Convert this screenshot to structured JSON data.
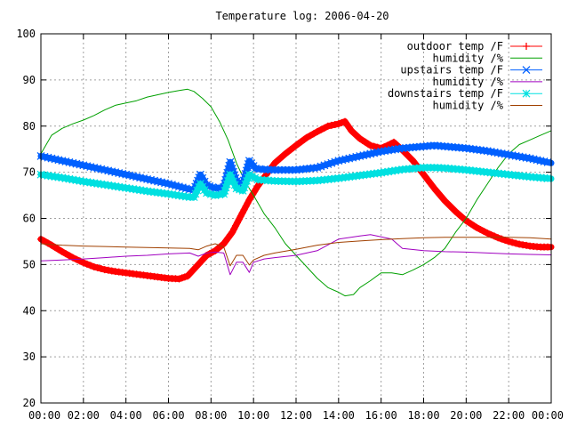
{
  "chart_data": {
    "type": "line",
    "title": "Temperature log: 2006-04-20",
    "xlabel": "",
    "ylabel": "",
    "xlim": [
      0,
      24
    ],
    "ylim": [
      20,
      100
    ],
    "x_ticks": [
      "00:00",
      "02:00",
      "04:00",
      "06:00",
      "08:00",
      "10:00",
      "12:00",
      "14:00",
      "16:00",
      "18:00",
      "20:00",
      "22:00",
      "00:00"
    ],
    "y_ticks": [
      "20",
      "30",
      "40",
      "50",
      "60",
      "70",
      "80",
      "90",
      "100"
    ],
    "grid": true,
    "legend_position": "top-right",
    "series": [
      {
        "name": "outdoor temp /F",
        "color": "#ff0000",
        "marker": "plus",
        "x": [
          0,
          0.5,
          1,
          1.5,
          2,
          2.5,
          3,
          3.5,
          4,
          4.5,
          5,
          5.5,
          6,
          6.5,
          6.9,
          7.2,
          7.5,
          7.8,
          8.2,
          8.6,
          9,
          9.4,
          9.8,
          10.2,
          10.6,
          11,
          11.5,
          12,
          12.5,
          13,
          13.5,
          14,
          14.3,
          14.6,
          15,
          15.5,
          16,
          16.3,
          16.6,
          17,
          17.5,
          18,
          18.5,
          19,
          19.5,
          20,
          20.5,
          21,
          21.5,
          22,
          22.5,
          23,
          23.5,
          24
        ],
        "y": [
          55.5,
          54.2,
          52.8,
          51.5,
          50.4,
          49.5,
          48.9,
          48.5,
          48.2,
          47.9,
          47.6,
          47.3,
          47.0,
          46.9,
          47.5,
          49,
          50.5,
          52,
          53,
          54.5,
          57,
          60.5,
          64,
          67,
          69.5,
          72,
          74,
          75.8,
          77.5,
          78.8,
          80,
          80.5,
          81,
          79,
          77.3,
          75.8,
          75.2,
          75.8,
          76.5,
          74.8,
          72.5,
          69.5,
          66.5,
          63.8,
          61.5,
          59.5,
          58,
          56.8,
          55.8,
          55,
          54.4,
          54,
          53.8,
          53.8
        ]
      },
      {
        "name": "humidity /%",
        "color": "#00a000",
        "x": [
          0,
          0.5,
          1,
          1.5,
          2,
          2.5,
          3,
          3.5,
          4,
          4.5,
          5,
          5.5,
          6,
          6.5,
          6.9,
          7.2,
          7.6,
          8,
          8.4,
          8.8,
          9.2,
          9.6,
          10,
          10.5,
          11,
          11.5,
          12,
          12.5,
          13,
          13.5,
          14,
          14.3,
          14.7,
          15,
          15.5,
          16,
          16.5,
          17,
          17.5,
          18,
          18.5,
          19,
          19.5,
          20,
          20.5,
          21,
          21.5,
          22,
          22.5,
          23,
          23.5,
          24
        ],
        "y": [
          74,
          78,
          79.5,
          80.5,
          81.3,
          82.3,
          83.5,
          84.5,
          85,
          85.5,
          86.3,
          86.8,
          87.3,
          87.7,
          88,
          87.5,
          86,
          84.2,
          81,
          77,
          72,
          68,
          65,
          61,
          58,
          54.5,
          52,
          49.5,
          47,
          45,
          44,
          43.2,
          43.5,
          45,
          46.5,
          48.2,
          48.2,
          47.8,
          48.8,
          50,
          51.5,
          53.5,
          57,
          60,
          64,
          67.5,
          71,
          74,
          76,
          77,
          78,
          79
        ]
      },
      {
        "name": "upstairs temp /F",
        "color": "#0060ff",
        "marker": "cross",
        "x": [
          0,
          1,
          2,
          3,
          4,
          5,
          6,
          7,
          7.2,
          7.5,
          7.8,
          8.2,
          8.6,
          8.9,
          9.2,
          9.5,
          9.8,
          10.1,
          10.5,
          11,
          12,
          13,
          14,
          15,
          16,
          17,
          18,
          18.5,
          19,
          20,
          21,
          22,
          23,
          24
        ],
        "y": [
          73.5,
          72.5,
          71.5,
          70.5,
          69.5,
          68.5,
          67.5,
          66.3,
          66.2,
          69.5,
          67.2,
          66.5,
          66.8,
          72.2,
          68,
          67.5,
          72.5,
          70.8,
          70.6,
          70.5,
          70.5,
          71,
          72.5,
          73.5,
          74.5,
          75.2,
          75.6,
          75.8,
          75.6,
          75.2,
          74.6,
          73.8,
          73,
          72
        ]
      },
      {
        "name": "humidity /%",
        "color": "#a000c0",
        "x": [
          0,
          1,
          2,
          3,
          4,
          5,
          6,
          7,
          7.4,
          7.8,
          8.2,
          8.6,
          8.9,
          9.2,
          9.5,
          9.8,
          10,
          10.5,
          11,
          12,
          13,
          14,
          15,
          15.5,
          16,
          16.5,
          17,
          18,
          19,
          20,
          21,
          22,
          23,
          24
        ],
        "y": [
          50.8,
          51,
          51.2,
          51.5,
          51.8,
          52,
          52.3,
          52.5,
          51.8,
          52.5,
          52.7,
          52.5,
          47.8,
          50.5,
          50.5,
          48.3,
          50.5,
          51.2,
          51.5,
          52,
          53,
          55.5,
          56.2,
          56.5,
          56,
          55.5,
          53.5,
          53,
          52.8,
          52.7,
          52.5,
          52.3,
          52.2,
          52.1
        ]
      },
      {
        "name": "downstairs temp /F",
        "color": "#00e0e0",
        "marker": "star",
        "x": [
          0,
          1,
          2,
          3,
          4,
          5,
          6,
          7,
          7.2,
          7.5,
          7.8,
          8.2,
          8.6,
          8.9,
          9.2,
          9.5,
          9.8,
          10.2,
          11,
          12,
          13,
          14,
          15,
          16,
          17,
          18,
          18.5,
          19,
          20,
          21,
          22,
          23,
          24
        ],
        "y": [
          69.5,
          68.8,
          68,
          67.3,
          66.6,
          65.9,
          65.3,
          64.6,
          64.6,
          67.5,
          65.5,
          65,
          65.3,
          69.5,
          66.5,
          66,
          69.5,
          68.4,
          68.1,
          68,
          68.2,
          68.7,
          69.3,
          69.9,
          70.6,
          71,
          71,
          70.9,
          70.5,
          70,
          69.5,
          69,
          68.6
        ]
      },
      {
        "name": "humidity /%",
        "color": "#a04000",
        "x": [
          0,
          1,
          2,
          3,
          4,
          5,
          6,
          7,
          7.4,
          7.8,
          8.2,
          8.6,
          8.9,
          9.2,
          9.5,
          9.8,
          10,
          10.5,
          11,
          12,
          13,
          14,
          15,
          16,
          17,
          18,
          19,
          20,
          21,
          22,
          23,
          24
        ],
        "y": [
          54.5,
          54.2,
          54,
          53.9,
          53.8,
          53.7,
          53.6,
          53.5,
          53.2,
          54,
          54.5,
          53.8,
          49.7,
          52,
          52,
          49.9,
          51,
          52,
          52.5,
          53.3,
          54.2,
          54.8,
          55.1,
          55.4,
          55.6,
          55.8,
          55.9,
          55.9,
          55.9,
          55.9,
          55.8,
          55.5
        ]
      }
    ]
  }
}
